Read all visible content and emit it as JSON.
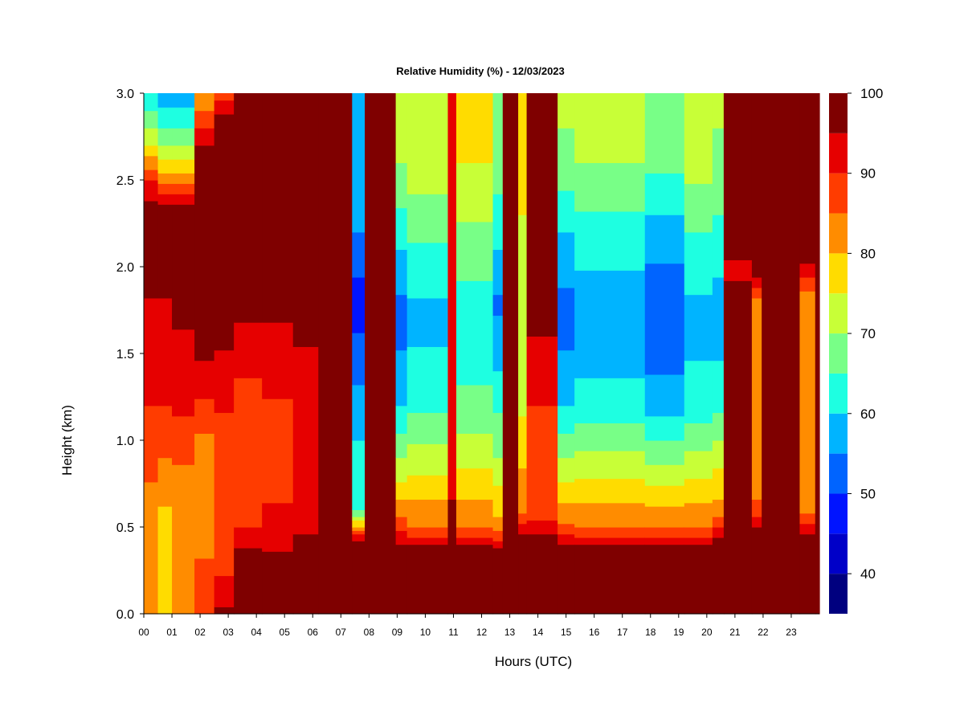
{
  "chart_data": {
    "type": "heatmap",
    "title": "Relative Humidity (%) - 12/03/2023",
    "xlabel": "Hours (UTC)",
    "ylabel": "Height (km)",
    "xlim": [
      0,
      24
    ],
    "ylim": [
      0,
      3
    ],
    "x_ticks": [
      "00",
      "01",
      "02",
      "03",
      "04",
      "05",
      "06",
      "07",
      "08",
      "09",
      "10",
      "11",
      "12",
      "13",
      "14",
      "15",
      "16",
      "17",
      "18",
      "19",
      "20",
      "21",
      "22",
      "23"
    ],
    "y_ticks": [
      "0.0",
      "0.5",
      "1.0",
      "1.5",
      "2.0",
      "2.5",
      "3.0"
    ],
    "colorbar": {
      "min": 35,
      "max": 100,
      "step": 5,
      "labels": [
        "40",
        "50",
        "60",
        "70",
        "80",
        "90",
        "100"
      ],
      "colors": [
        "#00007f",
        "#0000c8",
        "#0014ff",
        "#0064ff",
        "#00b4ff",
        "#1effe1",
        "#78ff87",
        "#c8ff37",
        "#ffdc00",
        "#ff8c00",
        "#ff3c00",
        "#e60000",
        "#7f0000"
      ]
    },
    "columns": [
      {
        "x0": 0.0,
        "x1": 0.5,
        "profile": [
          [
            0,
            80
          ],
          [
            0.5,
            82
          ],
          [
            1.2,
            90
          ],
          [
            2.3,
            99
          ],
          [
            2.5,
            90
          ],
          [
            2.7,
            75
          ],
          [
            2.9,
            65
          ],
          [
            3.0,
            60
          ]
        ]
      },
      {
        "x0": 0.5,
        "x1": 1.0,
        "profile": [
          [
            0,
            80
          ],
          [
            0.5,
            78
          ],
          [
            1.2,
            90
          ],
          [
            2.3,
            99
          ],
          [
            2.45,
            88
          ],
          [
            2.65,
            72
          ],
          [
            2.85,
            62
          ],
          [
            3.0,
            58
          ]
        ]
      },
      {
        "x0": 1.0,
        "x1": 1.8,
        "profile": [
          [
            0,
            85
          ],
          [
            0.6,
            80
          ],
          [
            1.3,
            93
          ],
          [
            2.3,
            99
          ],
          [
            2.45,
            88
          ],
          [
            2.65,
            72
          ],
          [
            2.85,
            62
          ],
          [
            3.0,
            58
          ]
        ]
      },
      {
        "x0": 1.8,
        "x1": 2.5,
        "profile": [
          [
            0,
            90
          ],
          [
            0.5,
            82
          ],
          [
            1.0,
            84
          ],
          [
            1.5,
            96
          ],
          [
            2.6,
            99
          ],
          [
            2.85,
            88
          ],
          [
            3.0,
            80
          ]
        ]
      },
      {
        "x0": 2.5,
        "x1": 3.2,
        "profile": [
          [
            0,
            96
          ],
          [
            0.3,
            88
          ],
          [
            0.8,
            85
          ],
          [
            1.6,
            96
          ],
          [
            2.8,
            99
          ],
          [
            3.0,
            88
          ]
        ]
      },
      {
        "x0": 3.2,
        "x1": 4.2,
        "profile": [
          [
            0,
            96
          ],
          [
            0.3,
            99
          ],
          [
            0.5,
            90
          ],
          [
            0.9,
            86
          ],
          [
            1.6,
            92
          ],
          [
            1.8,
            99
          ],
          [
            3.0,
            99
          ]
        ]
      },
      {
        "x0": 4.2,
        "x1": 5.3,
        "profile": [
          [
            0,
            95
          ],
          [
            0.2,
            99
          ],
          [
            0.5,
            91
          ],
          [
            0.9,
            88
          ],
          [
            1.6,
            92
          ],
          [
            1.8,
            99
          ],
          [
            3.0,
            99
          ]
        ]
      },
      {
        "x0": 5.3,
        "x1": 6.2,
        "profile": [
          [
            0,
            97
          ],
          [
            0.15,
            99
          ],
          [
            0.6,
            93
          ],
          [
            1.0,
            91
          ],
          [
            1.5,
            94
          ],
          [
            1.7,
            99
          ],
          [
            3.0,
            99
          ]
        ]
      },
      {
        "x0": 6.2,
        "x1": 7.4,
        "profile": [
          [
            0,
            99
          ],
          [
            3.0,
            99
          ]
        ]
      },
      {
        "x0": 7.4,
        "x1": 7.85,
        "profile": [
          [
            0,
            99
          ],
          [
            0.4,
            99
          ],
          [
            0.6,
            64
          ],
          [
            1.0,
            60
          ],
          [
            1.5,
            52
          ],
          [
            1.8,
            47
          ],
          [
            2.2,
            55
          ],
          [
            3.0,
            60
          ]
        ]
      },
      {
        "x0": 7.85,
        "x1": 8.95,
        "profile": [
          [
            0,
            99
          ],
          [
            3.0,
            99
          ]
        ]
      },
      {
        "x0": 8.95,
        "x1": 9.35,
        "profile": [
          [
            0,
            99
          ],
          [
            0.35,
            99
          ],
          [
            0.5,
            88
          ],
          [
            0.8,
            73
          ],
          [
            1.2,
            60
          ],
          [
            1.7,
            52
          ],
          [
            2.1,
            60
          ],
          [
            2.6,
            70
          ],
          [
            3.0,
            72
          ]
        ]
      },
      {
        "x0": 9.35,
        "x1": 10.8,
        "profile": [
          [
            0,
            99
          ],
          [
            0.35,
            99
          ],
          [
            0.5,
            85
          ],
          [
            0.8,
            75
          ],
          [
            1.2,
            64
          ],
          [
            1.7,
            58
          ],
          [
            2.2,
            66
          ],
          [
            2.6,
            73
          ],
          [
            3.0,
            75
          ]
        ]
      },
      {
        "x0": 10.8,
        "x1": 11.1,
        "profile": [
          [
            0,
            99
          ],
          [
            0.4,
            99
          ],
          [
            1.0,
            90
          ],
          [
            2.0,
            92
          ],
          [
            3.0,
            95
          ]
        ]
      },
      {
        "x0": 11.1,
        "x1": 12.4,
        "profile": [
          [
            0,
            99
          ],
          [
            0.35,
            99
          ],
          [
            0.5,
            85
          ],
          [
            0.8,
            76
          ],
          [
            1.2,
            66
          ],
          [
            1.7,
            62
          ],
          [
            2.2,
            69
          ],
          [
            2.6,
            75
          ],
          [
            3.0,
            80
          ]
        ]
      },
      {
        "x0": 12.4,
        "x1": 12.75,
        "profile": [
          [
            0,
            99
          ],
          [
            0.35,
            99
          ],
          [
            0.5,
            82
          ],
          [
            0.9,
            70
          ],
          [
            1.5,
            58
          ],
          [
            1.8,
            54
          ],
          [
            2.3,
            64
          ],
          [
            3.0,
            70
          ]
        ]
      },
      {
        "x0": 12.75,
        "x1": 13.3,
        "profile": [
          [
            0,
            99
          ],
          [
            3.0,
            99
          ]
        ]
      },
      {
        "x0": 13.3,
        "x1": 13.6,
        "profile": [
          [
            0,
            99
          ],
          [
            0.4,
            99
          ],
          [
            0.6,
            84
          ],
          [
            1.2,
            74
          ],
          [
            1.8,
            70
          ],
          [
            2.4,
            76
          ],
          [
            3.0,
            80
          ]
        ]
      },
      {
        "x0": 13.6,
        "x1": 14.7,
        "profile": [
          [
            0,
            99
          ],
          [
            0.4,
            99
          ],
          [
            0.55,
            89
          ],
          [
            1.0,
            88
          ],
          [
            1.5,
            93
          ],
          [
            1.8,
            99
          ],
          [
            3.0,
            99
          ]
        ]
      },
      {
        "x0": 14.7,
        "x1": 15.3,
        "profile": [
          [
            0,
            99
          ],
          [
            0.35,
            99
          ],
          [
            0.5,
            86
          ],
          [
            0.8,
            73
          ],
          [
            1.2,
            60
          ],
          [
            1.7,
            52
          ],
          [
            2.2,
            60
          ],
          [
            2.6,
            68
          ],
          [
            3.0,
            72
          ]
        ]
      },
      {
        "x0": 15.3,
        "x1": 17.8,
        "profile": [
          [
            0,
            99
          ],
          [
            0.35,
            99
          ],
          [
            0.5,
            85
          ],
          [
            0.8,
            74
          ],
          [
            1.2,
            62
          ],
          [
            1.7,
            56
          ],
          [
            2.2,
            63
          ],
          [
            2.6,
            70
          ],
          [
            3.0,
            73
          ]
        ]
      },
      {
        "x0": 17.8,
        "x1": 19.2,
        "profile": [
          [
            0,
            99
          ],
          [
            0.35,
            99
          ],
          [
            0.5,
            85
          ],
          [
            0.8,
            72
          ],
          [
            1.2,
            58
          ],
          [
            1.7,
            50
          ],
          [
            2.2,
            58
          ],
          [
            2.6,
            66
          ],
          [
            3.0,
            70
          ]
        ]
      },
      {
        "x0": 19.2,
        "x1": 20.2,
        "profile": [
          [
            0,
            99
          ],
          [
            0.35,
            99
          ],
          [
            0.5,
            85
          ],
          [
            0.8,
            74
          ],
          [
            1.2,
            62
          ],
          [
            1.7,
            58
          ],
          [
            2.2,
            65
          ],
          [
            2.6,
            72
          ],
          [
            3.0,
            75
          ]
        ]
      },
      {
        "x0": 20.2,
        "x1": 20.6,
        "profile": [
          [
            0,
            99
          ],
          [
            0.4,
            99
          ],
          [
            0.6,
            82
          ],
          [
            1.2,
            64
          ],
          [
            1.7,
            56
          ],
          [
            2.2,
            64
          ],
          [
            3.0,
            72
          ]
        ]
      },
      {
        "x0": 20.6,
        "x1": 21.6,
        "profile": [
          [
            0,
            99
          ],
          [
            1.8,
            99
          ],
          [
            2.0,
            92
          ],
          [
            2.1,
            99
          ],
          [
            3.0,
            99
          ]
        ]
      },
      {
        "x0": 21.6,
        "x1": 21.95,
        "profile": [
          [
            0,
            99
          ],
          [
            0.45,
            99
          ],
          [
            0.6,
            86
          ],
          [
            1.0,
            80
          ],
          [
            1.5,
            82
          ],
          [
            1.8,
            84
          ],
          [
            2.0,
            99
          ],
          [
            3.0,
            99
          ]
        ]
      },
      {
        "x0": 21.95,
        "x1": 23.3,
        "profile": [
          [
            0,
            99
          ],
          [
            3.0,
            99
          ]
        ]
      },
      {
        "x0": 23.3,
        "x1": 23.85,
        "profile": [
          [
            0,
            99
          ],
          [
            0.4,
            99
          ],
          [
            0.6,
            84
          ],
          [
            0.8,
            80
          ],
          [
            1.3,
            85
          ],
          [
            1.8,
            82
          ],
          [
            2.1,
            99
          ],
          [
            3.0,
            99
          ]
        ]
      },
      {
        "x0": 23.85,
        "x1": 24.0,
        "profile": [
          [
            0,
            99
          ],
          [
            3.0,
            99
          ]
        ]
      }
    ]
  }
}
